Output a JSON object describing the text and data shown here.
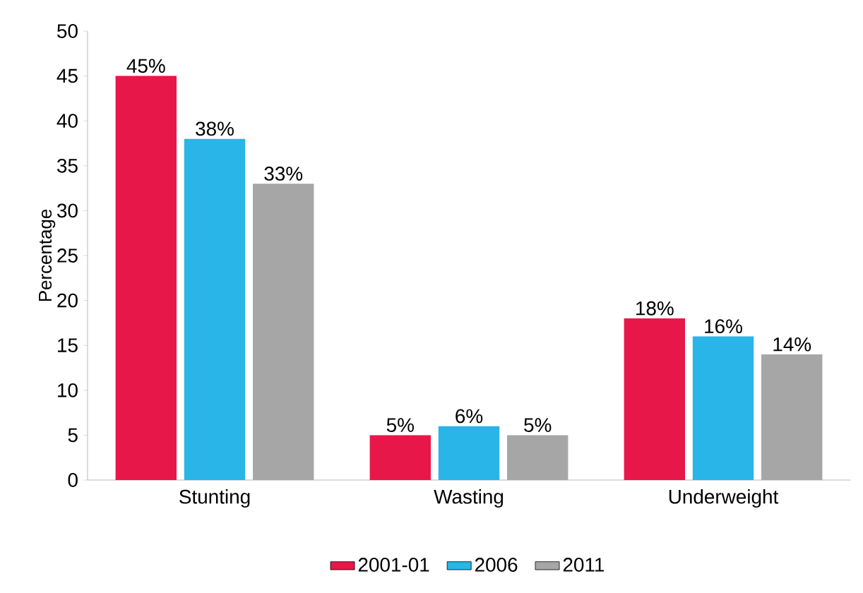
{
  "chart_data": {
    "type": "bar",
    "ylabel": "Percentage",
    "categories": [
      "Stunting",
      "Wasting",
      "Underweight"
    ],
    "series": [
      {
        "name": "2001-01",
        "color": "#e8174a",
        "values": [
          45,
          5,
          18
        ],
        "value_labels": [
          "45%",
          "5%",
          "18%"
        ]
      },
      {
        "name": "2006",
        "color": "#29b5e8",
        "values": [
          38,
          6,
          16
        ],
        "value_labels": [
          "38%",
          "6%",
          "16%"
        ]
      },
      {
        "name": "2011",
        "color": "#a6a6a6",
        "values": [
          33,
          5,
          14
        ],
        "value_labels": [
          "33%",
          "5%",
          "14%"
        ]
      }
    ],
    "ylim": [
      0,
      50
    ],
    "yticks": [
      0,
      5,
      10,
      15,
      20,
      25,
      30,
      35,
      40,
      45,
      50
    ],
    "legend": "bottom",
    "grid": false
  }
}
